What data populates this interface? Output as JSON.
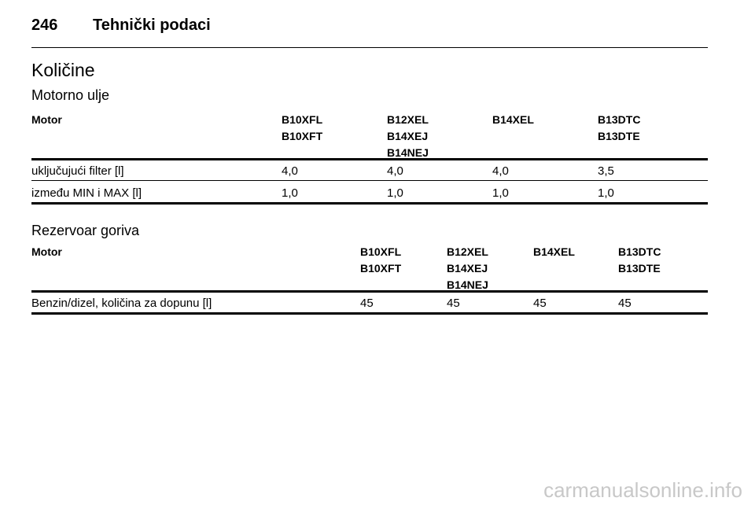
{
  "header": {
    "page_number": "246",
    "title": "Tehnički podaci"
  },
  "section_title": "Količine",
  "subsections": [
    {
      "title": "Motorno ulje",
      "table": {
        "header": {
          "label": "Motor",
          "engines": [
            [
              "B10XFL",
              "B10XFT"
            ],
            [
              "B12XEL",
              "B14XEJ",
              "B14NEJ"
            ],
            [
              "B14XEL"
            ],
            [
              "B13DTC",
              "B13DTE"
            ]
          ]
        },
        "rows": [
          [
            "uključujući filter [l]",
            "4,0",
            "4,0",
            "4,0",
            "3,5"
          ],
          [
            "između MIN i MAX [l]",
            "1,0",
            "1,0",
            "1,0",
            "1,0"
          ]
        ]
      }
    },
    {
      "title": "Rezervoar goriva",
      "table": {
        "header": {
          "label": "Motor",
          "engines": [
            [
              "B10XFL",
              "B10XFT"
            ],
            [
              "B12XEL",
              "B14XEJ",
              "B14NEJ"
            ],
            [
              "B14XEL"
            ],
            [
              "B13DTC",
              "B13DTE"
            ]
          ]
        },
        "rows": [
          [
            "Benzin/dizel, količina za dopunu [l]",
            "45",
            "45",
            "45",
            "45"
          ]
        ]
      }
    }
  ],
  "watermark": "carmanualsonline.info"
}
